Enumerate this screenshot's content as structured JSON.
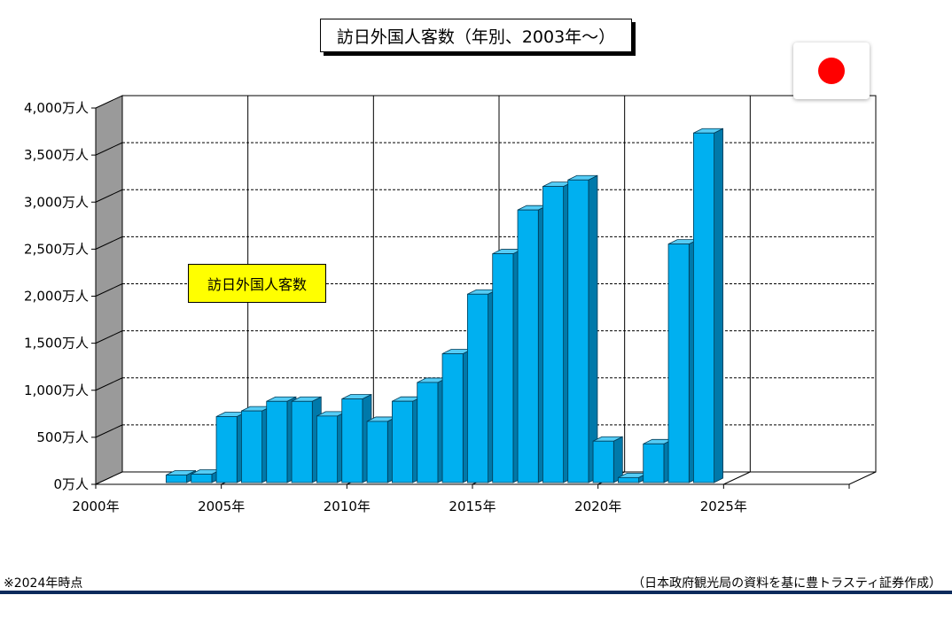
{
  "chart_data": {
    "type": "bar",
    "title": "訪日外国人客数（年別、2003年～）",
    "legend": {
      "label": "訪日外国人客数",
      "position": "left"
    },
    "x": [
      2003,
      2004,
      2005,
      2006,
      2007,
      2008,
      2009,
      2010,
      2011,
      2012,
      2013,
      2014,
      2015,
      2016,
      2017,
      2018,
      2019,
      2020,
      2021,
      2022,
      2023,
      2024
    ],
    "values": [
      52,
      61,
      673,
      733,
      835,
      835,
      679,
      861,
      622,
      836,
      1036,
      1341,
      1974,
      2404,
      2869,
      3119,
      3188,
      412,
      25,
      383,
      2507,
      3687
    ],
    "xlim": [
      2000,
      2030
    ],
    "ylim": [
      0,
      4000
    ],
    "x_ticks": [
      "2000年",
      "2005年",
      "2010年",
      "2015年",
      "2020年",
      "2025年"
    ],
    "y_ticks": [
      "0万人",
      "500万人",
      "1,000万人",
      "1,500万人",
      "2,000万人",
      "2,500万人",
      "3,000万人",
      "3,500万人",
      "4,000万人"
    ],
    "grid": true,
    "bar_color": "#00b0f0"
  },
  "flag": {
    "name": "japan-flag-icon",
    "color": "#ff0000"
  },
  "note": "※2024年時点",
  "source": "（日本政府観光局の資料を基に豊トラスティ証券作成）"
}
